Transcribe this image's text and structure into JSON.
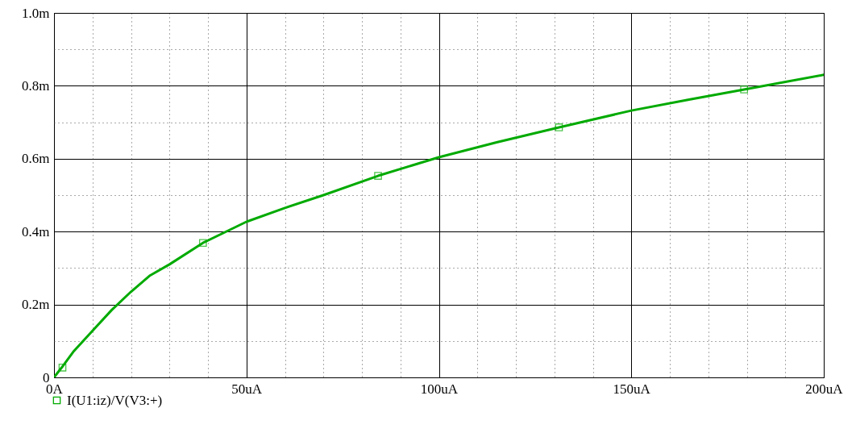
{
  "chart_data": {
    "type": "line",
    "xlim": [
      0,
      200
    ],
    "ylim": [
      0,
      1.0
    ],
    "xticks": [
      {
        "value": 0,
        "label": "0A"
      },
      {
        "value": 10,
        "label": null
      },
      {
        "value": 20,
        "label": null
      },
      {
        "value": 30,
        "label": null
      },
      {
        "value": 40,
        "label": null
      },
      {
        "value": 50,
        "label": "50uA"
      },
      {
        "value": 60,
        "label": null
      },
      {
        "value": 70,
        "label": null
      },
      {
        "value": 80,
        "label": null
      },
      {
        "value": 90,
        "label": null
      },
      {
        "value": 100,
        "label": "100uA"
      },
      {
        "value": 110,
        "label": null
      },
      {
        "value": 120,
        "label": null
      },
      {
        "value": 130,
        "label": null
      },
      {
        "value": 140,
        "label": null
      },
      {
        "value": 150,
        "label": "150uA"
      },
      {
        "value": 160,
        "label": null
      },
      {
        "value": 170,
        "label": null
      },
      {
        "value": 180,
        "label": null
      },
      {
        "value": 190,
        "label": null
      },
      {
        "value": 200,
        "label": "200uA"
      }
    ],
    "yticks": [
      0,
      {
        "value": 0.1,
        "label": null
      },
      {
        "value": 0.2,
        "label": "0.2m"
      },
      {
        "value": 0.3,
        "label": null
      },
      {
        "value": 0.4,
        "label": "0.4m"
      },
      {
        "value": 0.5,
        "label": null
      },
      {
        "value": 0.6,
        "label": "0.6m"
      },
      {
        "value": 0.7,
        "label": null
      },
      {
        "value": 0.8,
        "label": "0.8m"
      },
      {
        "value": 0.9,
        "label": null
      },
      {
        "value": 1.0,
        "label": "1.0m"
      }
    ],
    "grid": true,
    "legend": "bottom left",
    "line_style": "solid",
    "series": [
      {
        "name": "I(U1:iz)/V(V3:+)",
        "marker": "none",
        "color": "#00aa00",
        "x": [
          0,
          2,
          5,
          10,
          15,
          20,
          25,
          30,
          38.7,
          50,
          60,
          70,
          84.2,
          100,
          115,
          131.2,
          150,
          165,
          179.3,
          200
        ],
        "values": [
          0,
          0.027,
          0.07,
          0.128,
          0.185,
          0.235,
          0.28,
          0.31,
          0.369,
          0.427,
          0.465,
          0.5,
          0.553,
          0.604,
          0.645,
          0.686,
          0.732,
          0.762,
          0.79,
          0.83
        ]
      },
      {
        "type": "scatter",
        "marker": "square",
        "color": "#00aa00",
        "x": [
          2.2,
          38.7,
          84.2,
          131.2,
          179.3
        ],
        "values": [
          0.027,
          0.369,
          0.553,
          0.686,
          0.79
        ]
      }
    ]
  }
}
